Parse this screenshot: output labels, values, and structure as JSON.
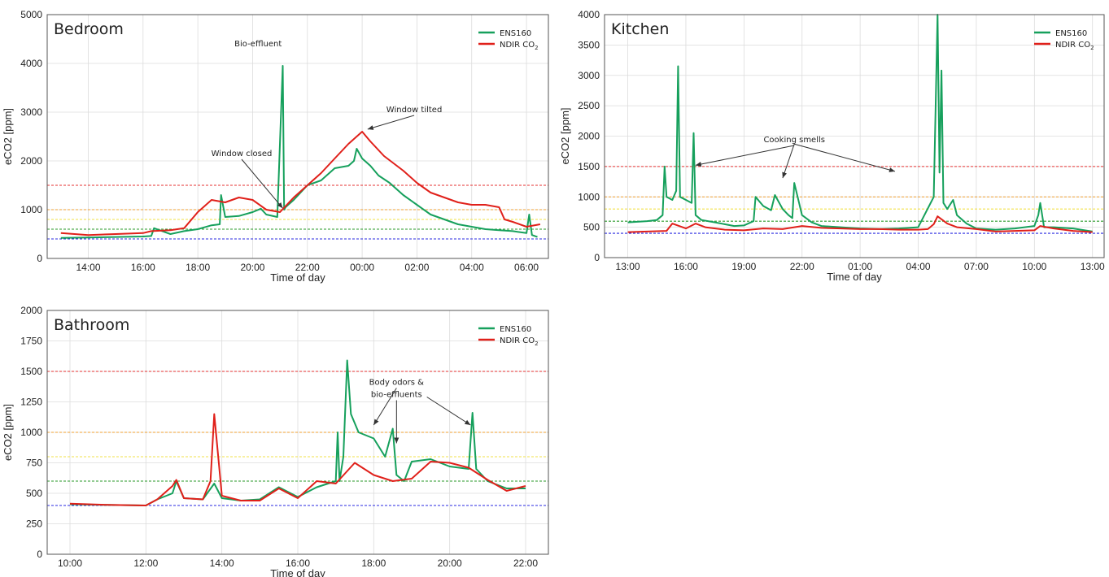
{
  "colors": {
    "ens160": "#16a05c",
    "ndir": "#e0201a",
    "red": "#e53030",
    "orange": "#f0a030",
    "yellow": "#f2e24a",
    "green": "#2a9a2a",
    "blue": "#2a2ae0"
  },
  "chart_data": [
    {
      "type": "line",
      "title": "Bedroom",
      "xlabel": "Time of day",
      "ylabel": "eCO2 [ppm]",
      "xlim": [
        12.5,
        30.8
      ],
      "ylim": [
        0,
        5000
      ],
      "yticks": [
        0,
        1000,
        2000,
        3000,
        4000,
        5000
      ],
      "xticks": [
        {
          "v": 14,
          "label": "14:00"
        },
        {
          "v": 16,
          "label": "16:00"
        },
        {
          "v": 18,
          "label": "18:00"
        },
        {
          "v": 20,
          "label": "20:00"
        },
        {
          "v": 22,
          "label": "22:00"
        },
        {
          "v": 24,
          "label": "00:00"
        },
        {
          "v": 26,
          "label": "02:00"
        },
        {
          "v": 28,
          "label": "04:00"
        },
        {
          "v": 30,
          "label": "06:00"
        }
      ],
      "thresholds": [
        {
          "value": 1500,
          "color": "red"
        },
        {
          "value": 1000,
          "color": "orange"
        },
        {
          "value": 800,
          "color": "yellow"
        },
        {
          "value": 600,
          "color": "green"
        },
        {
          "value": 400,
          "color": "blue"
        }
      ],
      "legend": [
        "ENS160",
        "NDIR CO",
        "2"
      ],
      "series": [
        {
          "name": "ENS160",
          "color": "ens160",
          "x": [
            13,
            14,
            15,
            16,
            16.3,
            16.4,
            17,
            17.5,
            18,
            18.5,
            18.8,
            18.85,
            19,
            19.5,
            20,
            20.3,
            20.5,
            20.9,
            21.1,
            21.15,
            21.2,
            21.3,
            21.5,
            22,
            22.5,
            23,
            23.5,
            23.7,
            23.8,
            24,
            24.3,
            24.6,
            25,
            25.5,
            26,
            26.5,
            27,
            27.5,
            28,
            28.5,
            29,
            29.5,
            30,
            30.1,
            30.2,
            30.4
          ],
          "y": [
            420,
            430,
            440,
            450,
            460,
            620,
            500,
            560,
            600,
            680,
            700,
            1300,
            850,
            870,
            950,
            1020,
            900,
            850,
            3950,
            1000,
            1050,
            1100,
            1200,
            1500,
            1600,
            1850,
            1900,
            2000,
            2250,
            2050,
            1900,
            1700,
            1550,
            1300,
            1100,
            900,
            800,
            700,
            650,
            600,
            580,
            560,
            520,
            900,
            480,
            440
          ]
        },
        {
          "name": "NDIR CO2",
          "color": "ndir",
          "x": [
            13,
            14,
            15,
            16,
            16.3,
            17,
            17.5,
            18,
            18.5,
            19,
            19.5,
            20,
            20.5,
            21,
            21.5,
            22,
            22.5,
            23,
            23.5,
            24,
            24.3,
            24.8,
            25.5,
            26,
            26.5,
            27,
            27.5,
            28,
            28.5,
            29,
            29.2,
            29.5,
            30,
            30.5
          ],
          "y": [
            520,
            480,
            500,
            520,
            560,
            580,
            620,
            950,
            1200,
            1150,
            1250,
            1200,
            1000,
            950,
            1250,
            1500,
            1750,
            2050,
            2350,
            2600,
            2400,
            2100,
            1800,
            1550,
            1350,
            1250,
            1150,
            1100,
            1100,
            1050,
            800,
            750,
            650,
            700
          ]
        }
      ],
      "annotations": [
        {
          "text": "Bio-effluent",
          "tx": 20.2,
          "ty": 4350,
          "ax": 21.0,
          "ay": 3880,
          "arrow": false
        },
        {
          "text": "Window tilted",
          "tx": 25.9,
          "ty": 3000,
          "ax": 24.2,
          "ay": 2650,
          "arrow": true
        },
        {
          "text": "Window closed",
          "tx": 19.6,
          "ty": 2100,
          "ax": 21.1,
          "ay": 1030,
          "arrow": true
        }
      ]
    },
    {
      "type": "line",
      "title": "Kitchen",
      "xlabel": "Time of day",
      "ylabel": "eCO2 [ppm]",
      "xlim": [
        11.8,
        37.6
      ],
      "ylim": [
        0,
        4000
      ],
      "yticks": [
        0,
        500,
        1000,
        1500,
        2000,
        2500,
        3000,
        3500,
        4000
      ],
      "xticks": [
        {
          "v": 13,
          "label": "13:00"
        },
        {
          "v": 16,
          "label": "16:00"
        },
        {
          "v": 19,
          "label": "19:00"
        },
        {
          "v": 22,
          "label": "22:00"
        },
        {
          "v": 25,
          "label": "01:00"
        },
        {
          "v": 28,
          "label": "04:00"
        },
        {
          "v": 31,
          "label": "07:00"
        },
        {
          "v": 34,
          "label": "10:00"
        },
        {
          "v": 37,
          "label": "13:00"
        }
      ],
      "thresholds": [
        {
          "value": 1500,
          "color": "red"
        },
        {
          "value": 1000,
          "color": "orange"
        },
        {
          "value": 800,
          "color": "yellow"
        },
        {
          "value": 600,
          "color": "green"
        },
        {
          "value": 400,
          "color": "blue"
        }
      ],
      "legend": [
        "ENS160",
        "NDIR CO",
        "2"
      ],
      "series": [
        {
          "name": "ENS160",
          "color": "ens160",
          "x": [
            13,
            14,
            14.5,
            14.8,
            14.9,
            15.0,
            15.3,
            15.5,
            15.6,
            15.7,
            16,
            16.3,
            16.4,
            16.5,
            16.8,
            17.5,
            18.5,
            19,
            19.5,
            19.6,
            20,
            20.4,
            20.6,
            21,
            21.3,
            21.5,
            21.6,
            22,
            22.5,
            23,
            24,
            25,
            26,
            27,
            28,
            28.8,
            29,
            29.1,
            29.2,
            29.3,
            29.5,
            29.8,
            30,
            30.5,
            31,
            32,
            33,
            34,
            34.2,
            34.3,
            34.5,
            35,
            36,
            37
          ],
          "y": [
            580,
            600,
            620,
            700,
            1500,
            1000,
            950,
            1100,
            3150,
            1000,
            950,
            900,
            2050,
            700,
            620,
            580,
            520,
            530,
            600,
            1000,
            850,
            780,
            1030,
            800,
            700,
            650,
            1230,
            700,
            580,
            520,
            500,
            480,
            470,
            480,
            500,
            1000,
            4000,
            1400,
            3080,
            900,
            800,
            950,
            700,
            560,
            480,
            460,
            480,
            520,
            700,
            900,
            500,
            500,
            480,
            430
          ]
        },
        {
          "name": "NDIR CO2",
          "color": "ndir",
          "x": [
            13,
            14,
            15,
            15.3,
            16,
            16.5,
            17,
            18,
            19,
            20,
            21,
            22,
            23,
            24,
            25,
            26,
            27,
            28,
            28.5,
            28.8,
            29,
            29.5,
            30,
            31,
            32,
            33,
            34,
            34.3,
            35,
            36,
            37
          ],
          "y": [
            420,
            430,
            440,
            560,
            480,
            560,
            500,
            460,
            450,
            480,
            470,
            520,
            490,
            480,
            470,
            470,
            460,
            460,
            470,
            550,
            680,
            560,
            500,
            470,
            430,
            440,
            450,
            520,
            480,
            440,
            420
          ]
        }
      ],
      "annotations": [
        {
          "text": "Cooking smells",
          "tx": 21.6,
          "ty": 1900,
          "ax": 16.5,
          "ay": 1520,
          "arrow": true
        },
        {
          "text": "",
          "tx": 21.6,
          "ty": 1870,
          "ax": 21.0,
          "ay": 1310,
          "arrow": true
        },
        {
          "text": "",
          "tx": 21.6,
          "ty": 1870,
          "ax": 26.8,
          "ay": 1420,
          "arrow": true
        }
      ]
    },
    {
      "type": "line",
      "title": "Bathroom",
      "xlabel": "Time of day",
      "ylabel": "eCO2 [ppm]",
      "xlim": [
        9.4,
        22.6
      ],
      "ylim": [
        0,
        2000
      ],
      "yticks": [
        0,
        250,
        500,
        750,
        1000,
        1250,
        1500,
        1750,
        2000
      ],
      "xticks": [
        {
          "v": 10,
          "label": "10:00"
        },
        {
          "v": 12,
          "label": "12:00"
        },
        {
          "v": 14,
          "label": "14:00"
        },
        {
          "v": 16,
          "label": "16:00"
        },
        {
          "v": 18,
          "label": "18:00"
        },
        {
          "v": 20,
          "label": "20:00"
        },
        {
          "v": 22,
          "label": "22:00"
        }
      ],
      "thresholds": [
        {
          "value": 1500,
          "color": "red"
        },
        {
          "value": 1000,
          "color": "orange"
        },
        {
          "value": 800,
          "color": "yellow"
        },
        {
          "value": 600,
          "color": "green"
        },
        {
          "value": 400,
          "color": "blue"
        }
      ],
      "legend": [
        "ENS160",
        "NDIR CO",
        "2"
      ],
      "series": [
        {
          "name": "ENS160",
          "color": "ens160",
          "x": [
            10,
            11,
            12,
            12.3,
            12.7,
            12.8,
            13,
            13.5,
            13.8,
            14,
            14.5,
            15,
            15.5,
            16,
            16.5,
            17,
            17.05,
            17.1,
            17.2,
            17.3,
            17.4,
            17.6,
            18,
            18.3,
            18.5,
            18.6,
            18.8,
            19,
            19.5,
            20,
            20.5,
            20.6,
            20.7,
            21,
            21.5,
            22
          ],
          "y": [
            410,
            405,
            400,
            450,
            500,
            600,
            460,
            450,
            580,
            460,
            440,
            450,
            550,
            470,
            550,
            600,
            1000,
            600,
            800,
            1590,
            1150,
            1000,
            950,
            800,
            1030,
            650,
            600,
            760,
            780,
            720,
            700,
            1160,
            700,
            600,
            540,
            540
          ]
        },
        {
          "name": "NDIR CO2",
          "color": "ndir",
          "x": [
            10,
            11,
            12,
            12.3,
            12.7,
            12.8,
            13,
            13.5,
            13.7,
            13.8,
            14,
            14.5,
            15,
            15.5,
            16,
            16.5,
            17,
            17.5,
            18,
            18.5,
            19,
            19.5,
            20,
            20.5,
            21,
            21.5,
            22
          ],
          "y": [
            415,
            405,
            400,
            450,
            560,
            610,
            460,
            450,
            600,
            1150,
            480,
            440,
            440,
            540,
            460,
            600,
            580,
            750,
            650,
            600,
            620,
            760,
            750,
            710,
            610,
            520,
            560
          ]
        }
      ],
      "annotations": [
        {
          "text": "Body odors &",
          "tx": 18.6,
          "ty": 1390,
          "ax": 18.0,
          "ay": 1060,
          "arrow": true
        },
        {
          "text": "bio-effluents",
          "tx": 18.6,
          "ty": 1290,
          "ax": 18.6,
          "ay": 910,
          "arrow": true
        },
        {
          "text": "",
          "tx": 19.4,
          "ty": 1290,
          "ax": 20.55,
          "ay": 1060,
          "arrow": true
        }
      ]
    }
  ]
}
